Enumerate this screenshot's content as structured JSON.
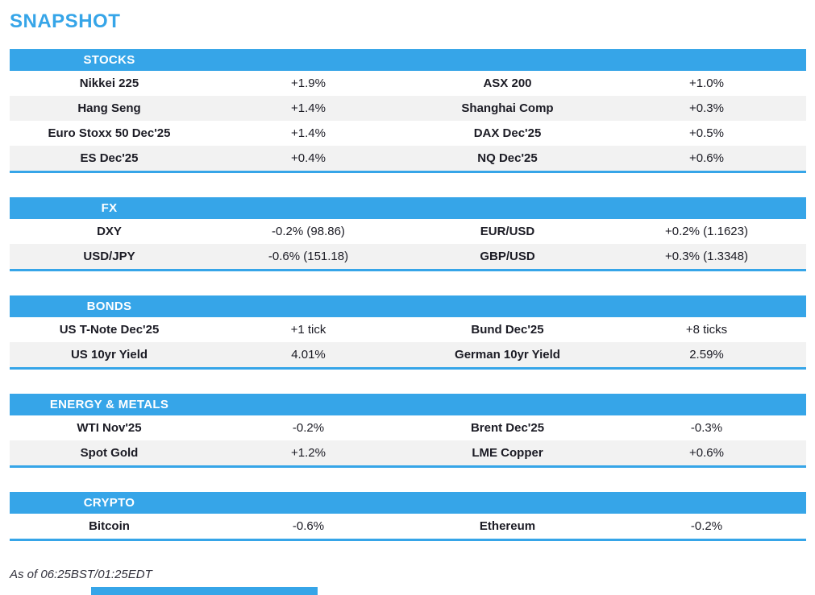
{
  "page": {
    "title": "SNAPSHOT",
    "footer": "As of 06:25BST/01:25EDT"
  },
  "colors": {
    "accent_blue": "#36a5e8",
    "row_alt_gray": "#f2f2f2",
    "text": "#1b1b24"
  },
  "sections": [
    {
      "title": "STOCKS",
      "rows": [
        [
          "Nikkei 225",
          "+1.9%",
          "ASX 200",
          "+1.0%"
        ],
        [
          "Hang Seng",
          "+1.4%",
          "Shanghai Comp",
          "+0.3%"
        ],
        [
          "Euro Stoxx 50 Dec'25",
          "+1.4%",
          "DAX Dec'25",
          "+0.5%"
        ],
        [
          "ES Dec'25",
          "+0.4%",
          "NQ Dec'25",
          "+0.6%"
        ]
      ]
    },
    {
      "title": "FX",
      "rows": [
        [
          "DXY",
          "-0.2% (98.86)",
          "EUR/USD",
          "+0.2% (1.1623)"
        ],
        [
          "USD/JPY",
          "-0.6% (151.18)",
          "GBP/USD",
          "+0.3% (1.3348)"
        ]
      ]
    },
    {
      "title": "BONDS",
      "rows": [
        [
          "US T-Note Dec'25",
          "+1 tick",
          "Bund Dec'25",
          "+8 ticks"
        ],
        [
          "US 10yr Yield",
          "4.01%",
          "German 10yr Yield",
          "2.59%"
        ]
      ]
    },
    {
      "title": "ENERGY & METALS",
      "rows": [
        [
          "WTI Nov'25",
          "-0.2%",
          "Brent Dec'25",
          "-0.3%"
        ],
        [
          "Spot Gold",
          "+1.2%",
          "LME Copper",
          "+0.6%"
        ]
      ]
    },
    {
      "title": "CRYPTO",
      "rows": [
        [
          "Bitcoin",
          "-0.6%",
          "Ethereum",
          "-0.2%"
        ]
      ]
    }
  ]
}
